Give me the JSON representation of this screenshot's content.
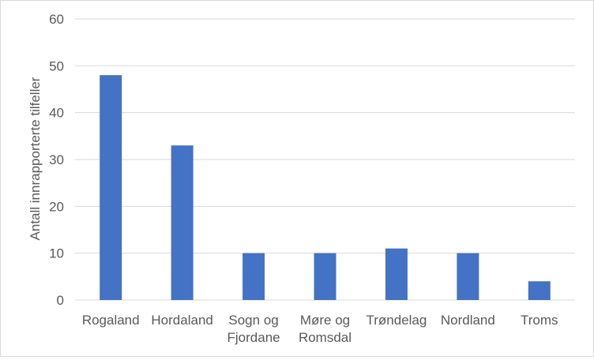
{
  "chart_data": {
    "type": "bar",
    "title": "",
    "xlabel": "",
    "ylabel": "Antall innrapporterte tilfeller",
    "categories": [
      [
        "Rogaland"
      ],
      [
        "Hordaland"
      ],
      [
        "Sogn og",
        "Fjordane"
      ],
      [
        "Møre og",
        "Romsdal"
      ],
      [
        "Trøndelag"
      ],
      [
        "Nordland"
      ],
      [
        "Troms"
      ]
    ],
    "values": [
      48,
      33,
      10,
      10,
      11,
      10,
      4
    ],
    "ylim": [
      0,
      60
    ],
    "yticks": [
      0,
      10,
      20,
      30,
      40,
      50,
      60
    ],
    "grid": true,
    "colors": {
      "bar": "#4472C4",
      "grid": "#d9d9d9",
      "text": "#595959"
    }
  }
}
